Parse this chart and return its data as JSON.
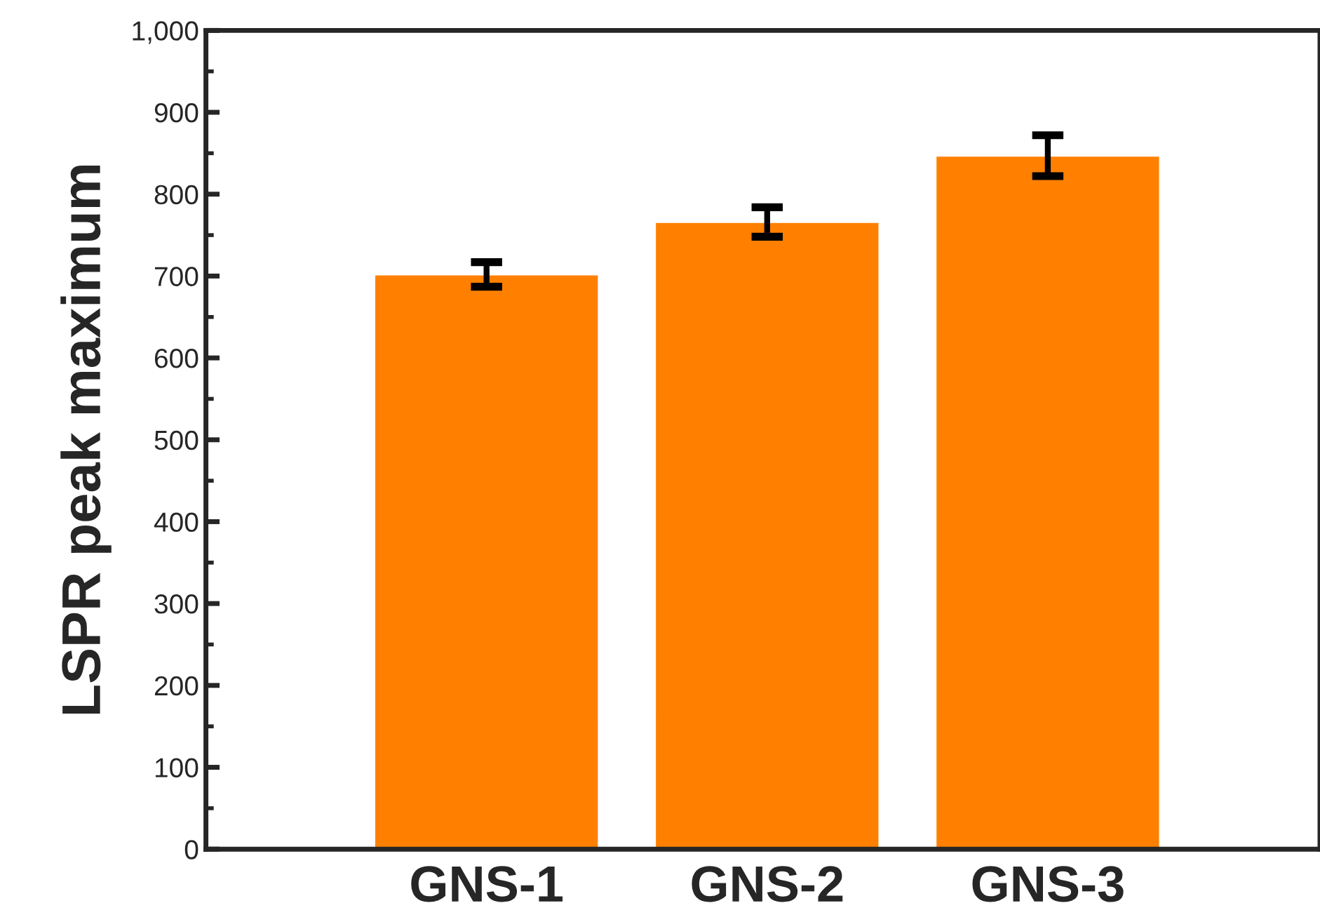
{
  "chart_data": {
    "type": "bar",
    "ylabel": "LSPR peak maximum",
    "categories": [
      "GNS-1",
      "GNS-2",
      "GNS-3"
    ],
    "values": [
      702,
      766,
      847
    ],
    "errors": [
      15,
      18,
      25
    ],
    "color": "#ff8000",
    "ylim": [
      0,
      1000
    ],
    "yticks": [
      0,
      100,
      200,
      300,
      400,
      500,
      600,
      700,
      800,
      900,
      {
        "value": 1000,
        "label": "1,000"
      }
    ],
    "grid": false,
    "legend": false
  }
}
